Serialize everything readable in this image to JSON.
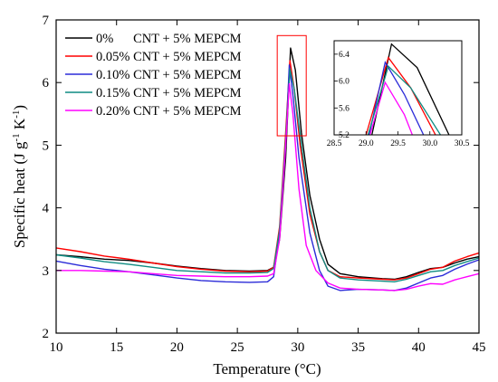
{
  "chart_data": {
    "type": "line",
    "xlabel": "Temperature (°C)",
    "ylabel": {
      "base": "Specific heat (J g",
      "sup1": "-1",
      "mid": " K",
      "sup2": "-1",
      "end": ")"
    },
    "xlim": [
      10,
      45
    ],
    "ylim": [
      2,
      7
    ],
    "xticks": [
      10,
      15,
      20,
      25,
      30,
      35,
      40,
      45
    ],
    "yticks": [
      2,
      3,
      4,
      5,
      6,
      7
    ],
    "grid": false,
    "legend_position": "top-left",
    "highlight_box": {
      "x": [
        28.3,
        30.7
      ],
      "y": [
        5.15,
        6.75
      ]
    },
    "series": [
      {
        "name": "0%      CNT + 5% MEPCM",
        "color": "#000000",
        "points": [
          [
            10,
            3.25
          ],
          [
            12,
            3.22
          ],
          [
            14,
            3.18
          ],
          [
            16,
            3.16
          ],
          [
            18,
            3.12
          ],
          [
            20,
            3.07
          ],
          [
            22,
            3.03
          ],
          [
            24,
            3.0
          ],
          [
            26,
            2.99
          ],
          [
            27.5,
            3.0
          ],
          [
            28,
            3.05
          ],
          [
            28.5,
            3.5
          ],
          [
            29,
            4.8
          ],
          [
            29.4,
            6.55
          ],
          [
            29.8,
            6.2
          ],
          [
            30.3,
            5.2
          ],
          [
            31,
            4.2
          ],
          [
            31.8,
            3.5
          ],
          [
            32.5,
            3.1
          ],
          [
            33.5,
            2.95
          ],
          [
            35,
            2.9
          ],
          [
            37,
            2.87
          ],
          [
            38,
            2.86
          ],
          [
            39,
            2.9
          ],
          [
            40,
            2.97
          ],
          [
            41,
            3.03
          ],
          [
            42,
            3.05
          ],
          [
            43,
            3.12
          ],
          [
            44,
            3.18
          ],
          [
            45,
            3.22
          ]
        ]
      },
      {
        "name": "0.05% CNT + 5% MEPCM",
        "color": "#ff0000",
        "points": [
          [
            10,
            3.36
          ],
          [
            12,
            3.3
          ],
          [
            14,
            3.23
          ],
          [
            16,
            3.18
          ],
          [
            18,
            3.12
          ],
          [
            20,
            3.06
          ],
          [
            22,
            3.02
          ],
          [
            24,
            2.99
          ],
          [
            26,
            2.98
          ],
          [
            27.5,
            2.99
          ],
          [
            28,
            3.05
          ],
          [
            28.5,
            3.7
          ],
          [
            29,
            5.2
          ],
          [
            29.35,
            6.35
          ],
          [
            29.7,
            5.9
          ],
          [
            30.2,
            5.0
          ],
          [
            31,
            3.9
          ],
          [
            31.8,
            3.3
          ],
          [
            32.5,
            3.0
          ],
          [
            33.5,
            2.9
          ],
          [
            35,
            2.88
          ],
          [
            37,
            2.86
          ],
          [
            38,
            2.85
          ],
          [
            39,
            2.88
          ],
          [
            40,
            2.95
          ],
          [
            41,
            3.02
          ],
          [
            42,
            3.05
          ],
          [
            43,
            3.15
          ],
          [
            44,
            3.22
          ],
          [
            45,
            3.28
          ]
        ]
      },
      {
        "name": "0.10% CNT + 5% MEPCM",
        "color": "#2b2bd8",
        "points": [
          [
            10,
            3.15
          ],
          [
            12,
            3.08
          ],
          [
            14,
            3.02
          ],
          [
            16,
            2.98
          ],
          [
            18,
            2.93
          ],
          [
            20,
            2.88
          ],
          [
            22,
            2.84
          ],
          [
            24,
            2.82
          ],
          [
            26,
            2.81
          ],
          [
            27.5,
            2.82
          ],
          [
            28,
            2.9
          ],
          [
            28.5,
            3.6
          ],
          [
            29,
            5.0
          ],
          [
            29.3,
            6.28
          ],
          [
            29.6,
            5.8
          ],
          [
            30.1,
            4.8
          ],
          [
            31,
            3.6
          ],
          [
            31.8,
            3.0
          ],
          [
            32.5,
            2.75
          ],
          [
            33.5,
            2.68
          ],
          [
            35,
            2.7
          ],
          [
            37,
            2.69
          ],
          [
            38,
            2.68
          ],
          [
            39,
            2.72
          ],
          [
            40,
            2.8
          ],
          [
            41,
            2.88
          ],
          [
            42,
            2.92
          ],
          [
            43,
            3.02
          ],
          [
            44,
            3.1
          ],
          [
            45,
            3.17
          ]
        ]
      },
      {
        "name": "0.15% CNT + 5% MEPCM",
        "color": "#0f8c82",
        "points": [
          [
            10,
            3.25
          ],
          [
            12,
            3.2
          ],
          [
            14,
            3.14
          ],
          [
            16,
            3.1
          ],
          [
            18,
            3.05
          ],
          [
            20,
            3.0
          ],
          [
            22,
            2.98
          ],
          [
            24,
            2.96
          ],
          [
            26,
            2.96
          ],
          [
            27.5,
            2.97
          ],
          [
            28,
            3.03
          ],
          [
            28.5,
            3.65
          ],
          [
            29,
            5.1
          ],
          [
            29.35,
            6.22
          ],
          [
            29.7,
            5.9
          ],
          [
            30.3,
            5.0
          ],
          [
            31,
            4.0
          ],
          [
            31.8,
            3.3
          ],
          [
            32.5,
            3.0
          ],
          [
            33.5,
            2.88
          ],
          [
            35,
            2.85
          ],
          [
            37,
            2.83
          ],
          [
            38,
            2.82
          ],
          [
            39,
            2.86
          ],
          [
            40,
            2.92
          ],
          [
            41,
            2.98
          ],
          [
            42,
            3.0
          ],
          [
            43,
            3.08
          ],
          [
            44,
            3.14
          ],
          [
            45,
            3.2
          ]
        ]
      },
      {
        "name": "0.20% CNT + 5% MEPCM",
        "color": "#ff00ff",
        "points": [
          [
            10,
            3.0
          ],
          [
            12,
            3.0
          ],
          [
            14,
            2.99
          ],
          [
            16,
            2.98
          ],
          [
            18,
            2.95
          ],
          [
            20,
            2.92
          ],
          [
            22,
            2.91
          ],
          [
            24,
            2.9
          ],
          [
            26,
            2.9
          ],
          [
            27.5,
            2.91
          ],
          [
            28,
            2.95
          ],
          [
            28.5,
            3.5
          ],
          [
            29,
            5.0
          ],
          [
            29.3,
            5.98
          ],
          [
            29.6,
            5.5
          ],
          [
            30.1,
            4.3
          ],
          [
            30.7,
            3.4
          ],
          [
            31.5,
            3.0
          ],
          [
            32.5,
            2.8
          ],
          [
            33.5,
            2.72
          ],
          [
            35,
            2.7
          ],
          [
            37,
            2.69
          ],
          [
            38,
            2.68
          ],
          [
            39,
            2.7
          ],
          [
            40,
            2.75
          ],
          [
            41,
            2.79
          ],
          [
            42,
            2.78
          ],
          [
            43,
            2.85
          ],
          [
            44,
            2.9
          ],
          [
            45,
            2.95
          ]
        ]
      }
    ],
    "inset": {
      "xlim": [
        28.5,
        30.5
      ],
      "ylim": [
        5.2,
        6.6
      ],
      "xticks": [
        "28.5",
        "29.0",
        "29.5",
        "30.0",
        "30.5"
      ],
      "yticks": [
        "5.2",
        "5.6",
        "6.0",
        "6.4"
      ]
    }
  }
}
